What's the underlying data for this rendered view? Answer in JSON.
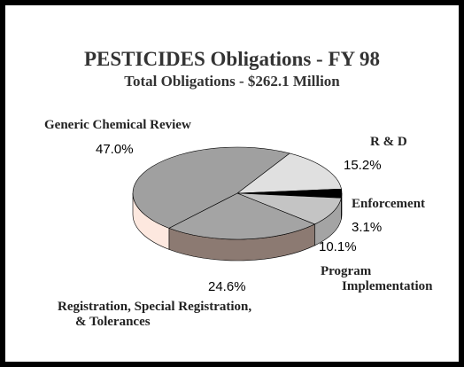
{
  "chart_data": {
    "type": "pie3d",
    "title": "PESTICIDES Obligations - FY 98",
    "subtitle": "Total Obligations - $262.1 Million",
    "categories": [
      "R & D",
      "Enforcement",
      "Program Implementation",
      "Registration, Special Registration, & Tolerances",
      "Generic Chemical Review"
    ],
    "values": [
      15.2,
      3.1,
      10.1,
      24.6,
      47.0
    ],
    "value_labels": [
      "15.2%",
      "3.1%",
      "10.1%",
      "24.6%",
      "47.0%"
    ],
    "colors": [
      "#e0e0e0",
      "#000000",
      "#c4c4c4",
      "#a4a4a4",
      "#a0a0a0"
    ],
    "side_colors": [
      "#b4b4b4",
      "#000000",
      "#a4a4a4",
      "#8c7a72",
      "#fde8df"
    ]
  }
}
